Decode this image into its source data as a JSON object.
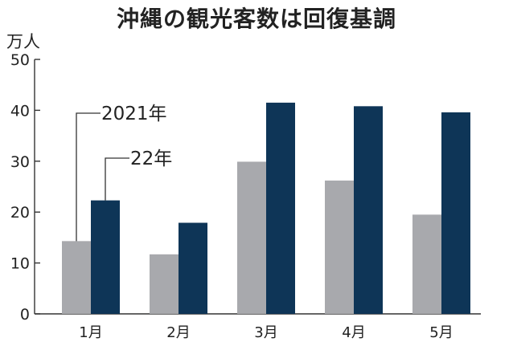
{
  "chart_data": {
    "type": "bar",
    "title": "沖縄の観光客数は回復基調",
    "unit": "万人",
    "categories": [
      "1月",
      "2月",
      "3月",
      "4月",
      "5月"
    ],
    "series": [
      {
        "name": "2021年",
        "values": [
          14.3,
          11.7,
          29.9,
          26.2,
          19.5
        ],
        "color": "#a8a9ad"
      },
      {
        "name": "22年",
        "values": [
          22.3,
          17.9,
          41.5,
          40.8,
          39.6
        ],
        "color": "#0e3557"
      }
    ],
    "yticks": [
      0,
      10,
      20,
      30,
      40,
      50
    ],
    "ylim": [
      0,
      50
    ],
    "grid": false,
    "legend": "callout-labels"
  }
}
